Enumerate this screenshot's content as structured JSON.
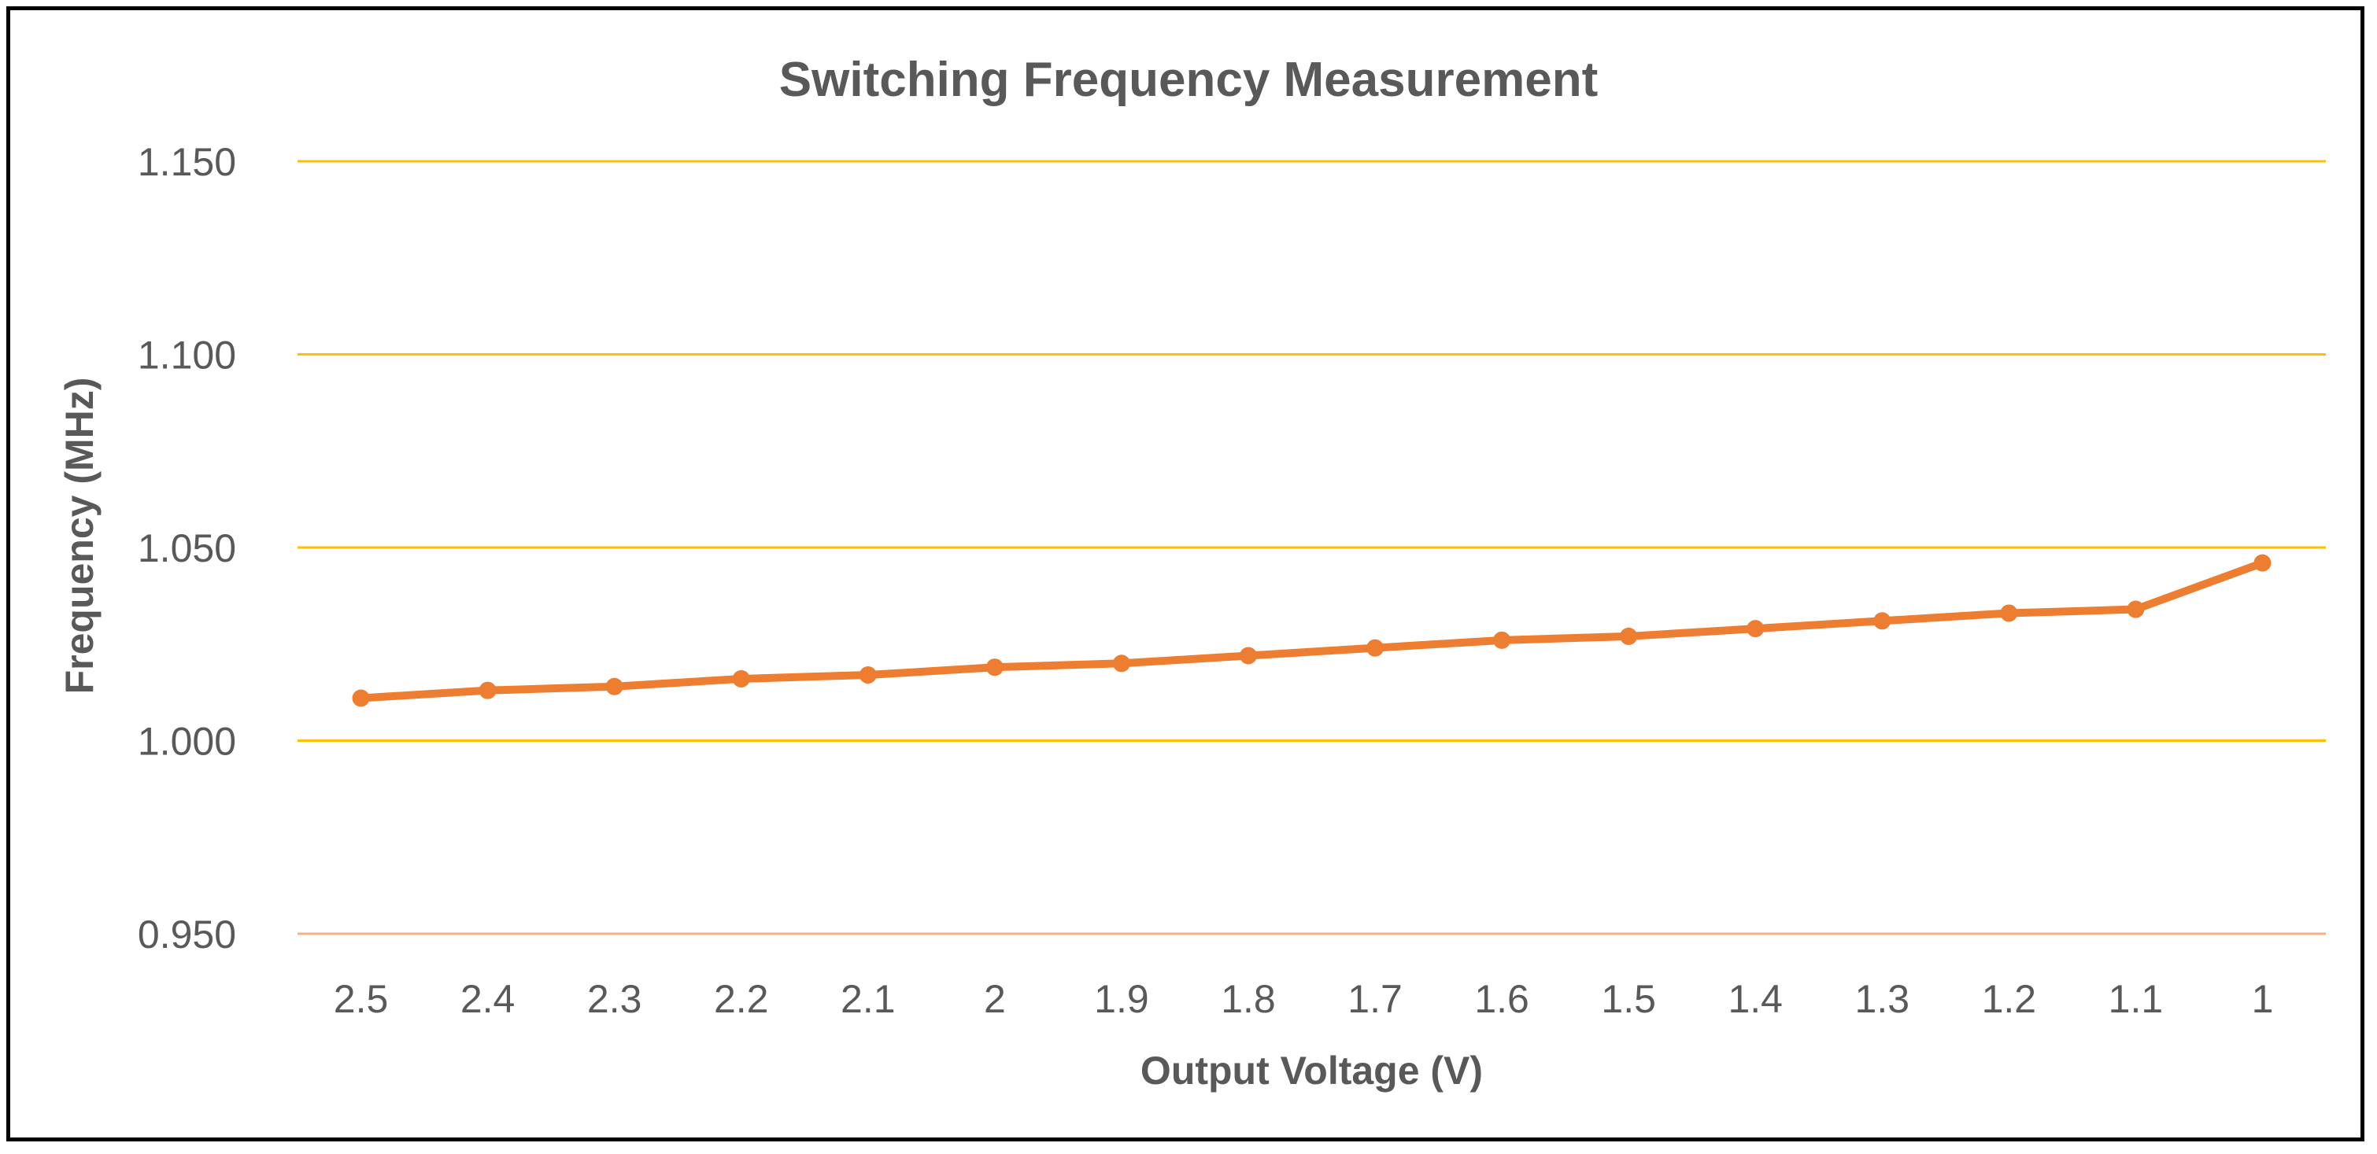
{
  "chart_data": {
    "type": "line",
    "title": "Switching Frequency Measurement",
    "xlabel": "Output Voltage (V)",
    "ylabel": "Frequency (MHz)",
    "categories": [
      "2.5",
      "2.4",
      "2.3",
      "2.2",
      "2.1",
      "2",
      "1.9",
      "1.8",
      "1.7",
      "1.6",
      "1.5",
      "1.4",
      "1.3",
      "1.2",
      "1.1",
      "1"
    ],
    "series": [
      {
        "name": "Frequency",
        "values": [
          1.011,
          1.013,
          1.014,
          1.016,
          1.017,
          1.019,
          1.02,
          1.022,
          1.024,
          1.026,
          1.027,
          1.029,
          1.031,
          1.033,
          1.034,
          1.046
        ]
      }
    ],
    "ylim": [
      0.95,
      1.15
    ],
    "yticks": [
      "0.950",
      "1.000",
      "1.050",
      "1.100",
      "1.150"
    ],
    "grid": true,
    "line_color": "#ED7D31",
    "grid_color": "#FFC000",
    "baseline_color": "#F4B183"
  }
}
